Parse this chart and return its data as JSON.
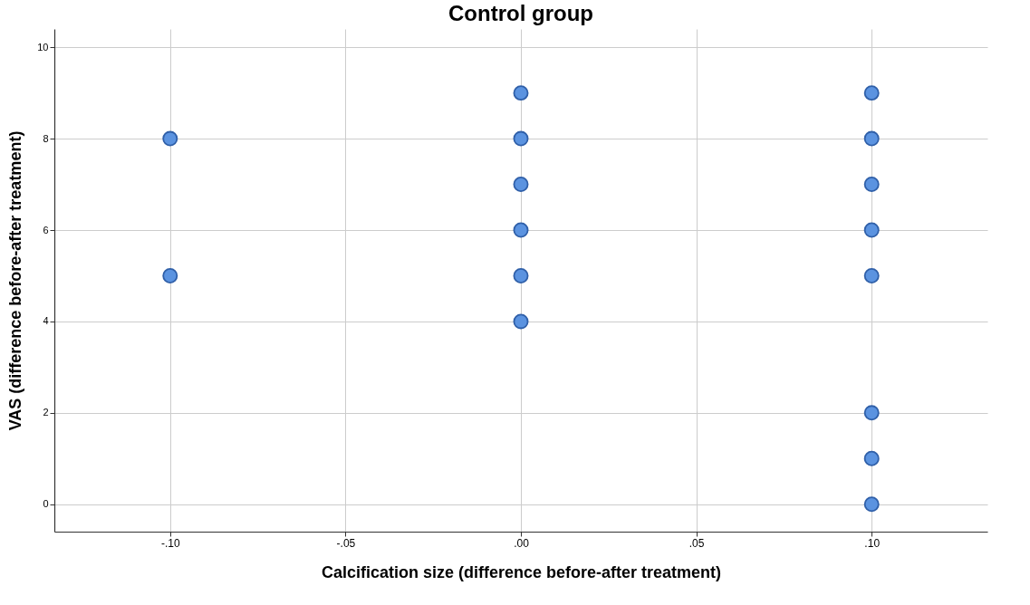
{
  "chart_data": {
    "type": "scatter",
    "title": "Control group",
    "xlabel": "Calcification size (difference before-after treatment)",
    "ylabel": "VAS (difference before-after treatment)",
    "series": [
      {
        "color": "#5b93e0",
        "x": [
          -0.1,
          -0.1,
          0,
          0,
          0,
          0,
          0,
          0,
          0.1,
          0.1,
          0.1,
          0.1,
          0.1,
          0.1,
          0.1,
          0.1
        ],
        "values": [
          8,
          5,
          9,
          8,
          7,
          6,
          5,
          4,
          9,
          8,
          7,
          6,
          5,
          2,
          1,
          0
        ]
      }
    ],
    "xlim": [
      -0.133,
      0.133
    ],
    "ylim": [
      -0.6,
      10.4
    ],
    "xticks": [
      {
        "value": -0.1,
        "label": "-.10"
      },
      {
        "value": -0.05,
        "label": "-.05"
      },
      {
        "value": 0,
        "label": ".00"
      },
      {
        "value": 0.05,
        "label": ".05"
      },
      {
        "value": 0.1,
        "label": ".10"
      }
    ],
    "yticks": [
      0,
      2,
      4,
      6,
      8,
      10
    ],
    "grid": true,
    "marker": "circle"
  }
}
